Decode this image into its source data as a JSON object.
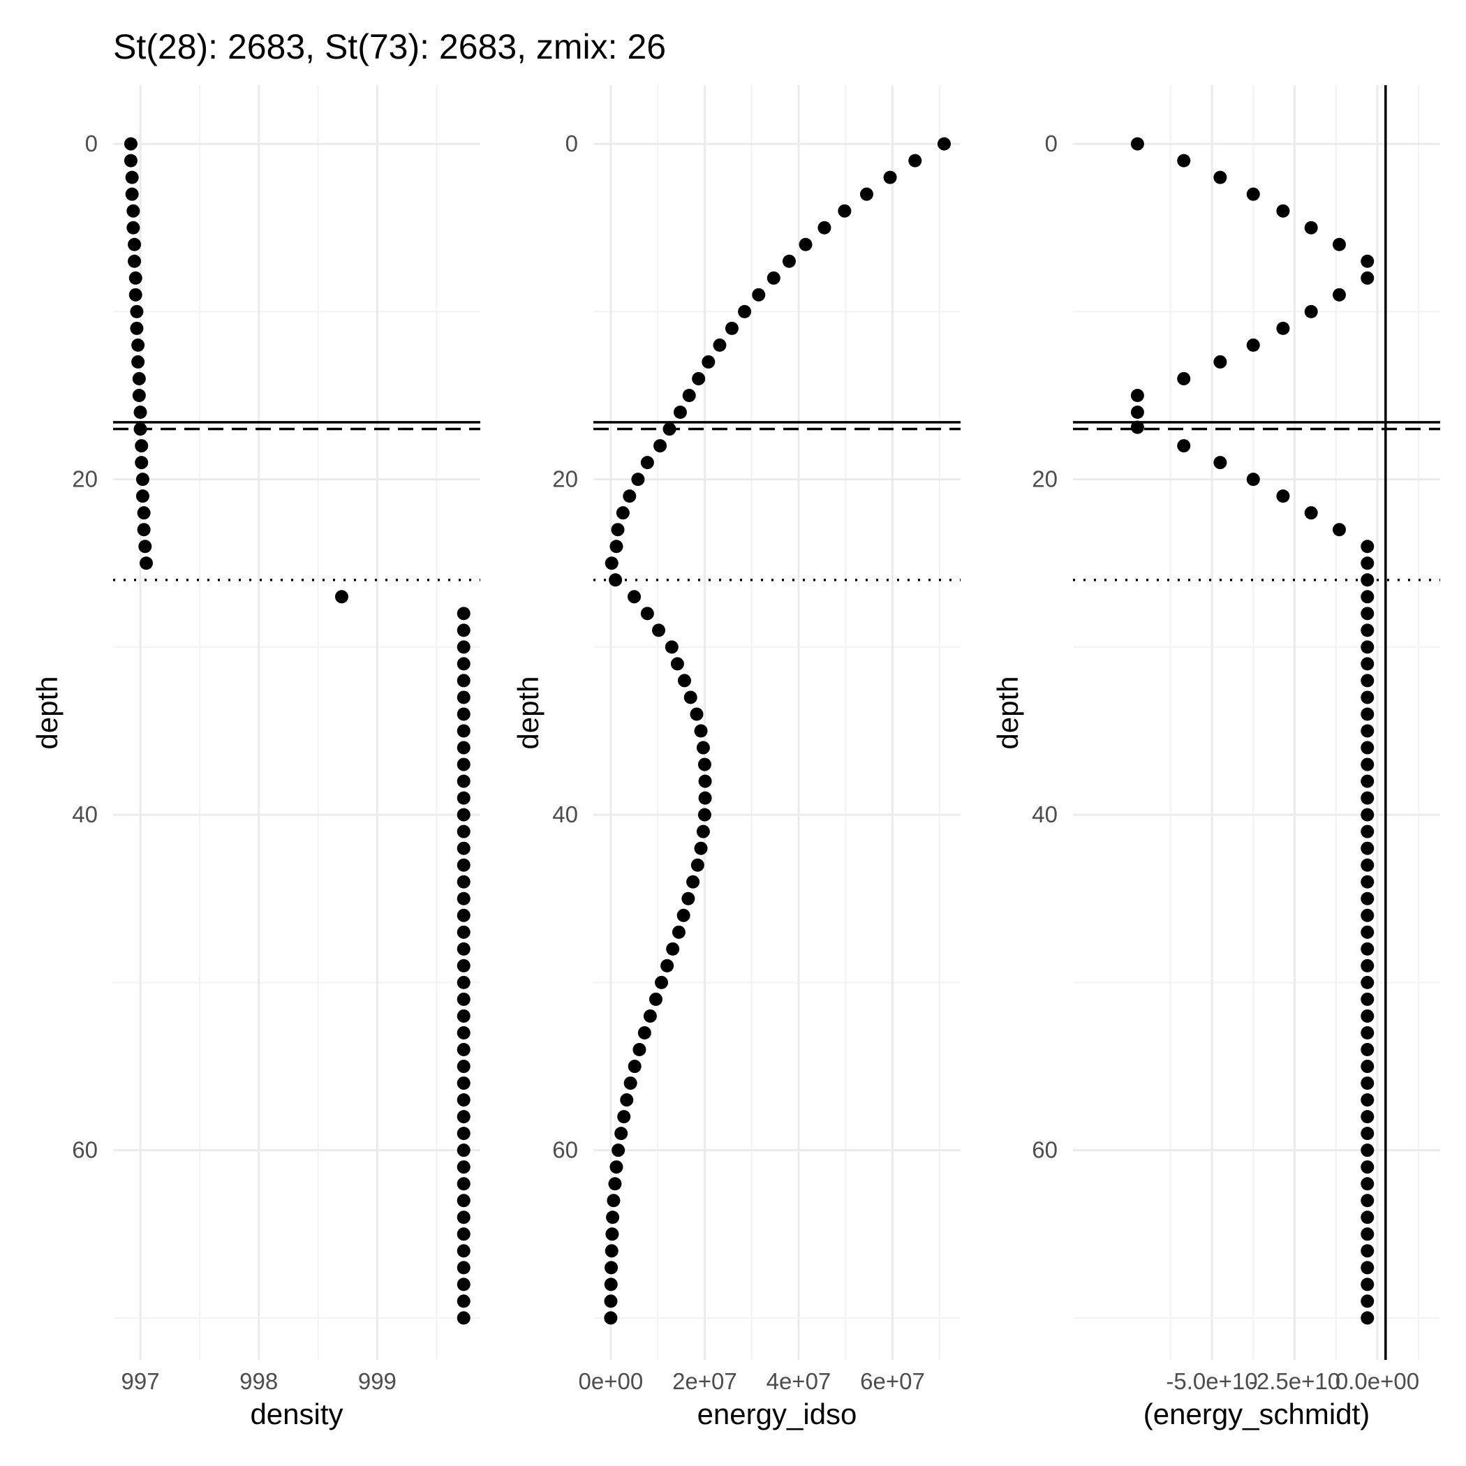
{
  "title": "St(28): 2683, St(73): 2683, zmix: 26",
  "chart_data": {
    "title": "St(28): 2683, St(73): 2683, zmix: 26",
    "ylabel": "depth",
    "y_reversed": true,
    "ylim": [
      -3.5,
      72.5
    ],
    "y_ticks": [
      0,
      20,
      40,
      60
    ],
    "y_tick_labels": [
      "0",
      "20",
      "40",
      "60"
    ],
    "hlines": [
      {
        "y": 16.6,
        "style": "solid"
      },
      {
        "y": 17.0,
        "style": "dashed"
      },
      {
        "y": 26.0,
        "style": "dotted"
      }
    ],
    "panels": [
      {
        "type": "scatter",
        "xlabel": "density",
        "xlim": [
          996.77,
          999.87
        ],
        "x_ticks": [
          997,
          998,
          999
        ],
        "x_tick_labels": [
          "997",
          "998",
          "999"
        ],
        "vlines": [],
        "points": [
          [
            996.92,
            0
          ],
          [
            996.92,
            1
          ],
          [
            996.93,
            2
          ],
          [
            996.93,
            3
          ],
          [
            996.94,
            4
          ],
          [
            996.94,
            5
          ],
          [
            996.95,
            6
          ],
          [
            996.95,
            7
          ],
          [
            996.96,
            8
          ],
          [
            996.96,
            9
          ],
          [
            996.97,
            10
          ],
          [
            996.97,
            11
          ],
          [
            996.98,
            12
          ],
          [
            996.98,
            13
          ],
          [
            996.99,
            14
          ],
          [
            996.99,
            15
          ],
          [
            997.0,
            16
          ],
          [
            997.0,
            17
          ],
          [
            997.01,
            18
          ],
          [
            997.01,
            19
          ],
          [
            997.02,
            20
          ],
          [
            997.02,
            21
          ],
          [
            997.03,
            22
          ],
          [
            997.03,
            23
          ],
          [
            997.04,
            24
          ],
          [
            997.05,
            25
          ],
          [
            998.7,
            27
          ],
          [
            999.73,
            28
          ],
          [
            999.73,
            29
          ],
          [
            999.73,
            30
          ],
          [
            999.73,
            31
          ],
          [
            999.73,
            32
          ],
          [
            999.73,
            33
          ],
          [
            999.73,
            34
          ],
          [
            999.73,
            35
          ],
          [
            999.73,
            36
          ],
          [
            999.73,
            37
          ],
          [
            999.73,
            38
          ],
          [
            999.73,
            39
          ],
          [
            999.73,
            40
          ],
          [
            999.73,
            41
          ],
          [
            999.73,
            42
          ],
          [
            999.73,
            43
          ],
          [
            999.73,
            44
          ],
          [
            999.73,
            45
          ],
          [
            999.73,
            46
          ],
          [
            999.73,
            47
          ],
          [
            999.73,
            48
          ],
          [
            999.73,
            49
          ],
          [
            999.73,
            50
          ],
          [
            999.73,
            51
          ],
          [
            999.73,
            52
          ],
          [
            999.73,
            53
          ],
          [
            999.73,
            54
          ],
          [
            999.73,
            55
          ],
          [
            999.73,
            56
          ],
          [
            999.73,
            57
          ],
          [
            999.73,
            58
          ],
          [
            999.73,
            59
          ],
          [
            999.73,
            60
          ],
          [
            999.73,
            61
          ],
          [
            999.73,
            62
          ],
          [
            999.73,
            63
          ],
          [
            999.73,
            64
          ],
          [
            999.73,
            65
          ],
          [
            999.73,
            66
          ],
          [
            999.73,
            67
          ],
          [
            999.73,
            68
          ],
          [
            999.73,
            69
          ],
          [
            999.73,
            70
          ]
        ]
      },
      {
        "type": "scatter",
        "xlabel": "energy_idso",
        "xlim": [
          -3700000.0,
          74500000.0
        ],
        "x_ticks": [
          0,
          20000000.0,
          40000000.0,
          60000000.0
        ],
        "x_tick_labels": [
          "0e+00",
          "2e+07",
          "4e+07",
          "6e+07"
        ],
        "vlines": [],
        "points": [
          [
            71000000.0,
            0
          ],
          [
            64800000.0,
            1
          ],
          [
            59500000.0,
            2
          ],
          [
            54500000.0,
            3
          ],
          [
            49800000.0,
            4
          ],
          [
            45500000.0,
            5
          ],
          [
            41500000.0,
            6
          ],
          [
            38000000.0,
            7
          ],
          [
            34700000.0,
            8
          ],
          [
            31500000.0,
            9
          ],
          [
            28500000.0,
            10
          ],
          [
            25800000.0,
            11
          ],
          [
            23200000.0,
            12
          ],
          [
            20800000.0,
            13
          ],
          [
            18700000.0,
            14
          ],
          [
            16700000.0,
            15
          ],
          [
            14800000.0,
            16
          ],
          [
            12500000.0,
            17
          ],
          [
            10500000.0,
            18
          ],
          [
            7800000.0,
            19
          ],
          [
            5800000.0,
            20
          ],
          [
            4000000.0,
            21
          ],
          [
            2600000.0,
            22
          ],
          [
            1500000.0,
            23
          ],
          [
            1200000.0,
            24
          ],
          [
            200000.0,
            25
          ],
          [
            1000000.0,
            26
          ],
          [
            5000000.0,
            27
          ],
          [
            7800000.0,
            28
          ],
          [
            10200000.0,
            29
          ],
          [
            13000000.0,
            30
          ],
          [
            14200000.0,
            31
          ],
          [
            15700000.0,
            32
          ],
          [
            17000000.0,
            33
          ],
          [
            18300000.0,
            34
          ],
          [
            19200000.0,
            35
          ],
          [
            19700000.0,
            36
          ],
          [
            20000000.0,
            37
          ],
          [
            20100000.0,
            38
          ],
          [
            20100000.0,
            39
          ],
          [
            20000000.0,
            40
          ],
          [
            19700000.0,
            41
          ],
          [
            19200000.0,
            42
          ],
          [
            18500000.0,
            43
          ],
          [
            17500000.0,
            44
          ],
          [
            16500000.0,
            45
          ],
          [
            15500000.0,
            46
          ],
          [
            14500000.0,
            47
          ],
          [
            13200000.0,
            48
          ],
          [
            12000000.0,
            49
          ],
          [
            10800000.0,
            50
          ],
          [
            9600000.0,
            51
          ],
          [
            8400000.0,
            52
          ],
          [
            7200000.0,
            53
          ],
          [
            6100000.0,
            54
          ],
          [
            5100000.0,
            55
          ],
          [
            4200000.0,
            56
          ],
          [
            3400000.0,
            57
          ],
          [
            2800000.0,
            58
          ],
          [
            2200000.0,
            59
          ],
          [
            1600000.0,
            60
          ],
          [
            1200000.0,
            61
          ],
          [
            900000.0,
            62
          ],
          [
            600000.0,
            63
          ],
          [
            400000.0,
            64
          ],
          [
            300000.0,
            65
          ],
          [
            200000.0,
            66
          ],
          [
            100000.0,
            67
          ],
          [
            50000.0,
            68
          ],
          [
            10000.0,
            69
          ],
          [
            0,
            70
          ]
        ]
      },
      {
        "type": "scatter",
        "xlabel": "(energy_schmidt)",
        "xlim": [
          -92000000000.0,
          19000000000.0
        ],
        "x_ticks": [
          -50000000000.0,
          -25000000000.0,
          0
        ],
        "x_tick_labels": [
          "-5.0e+10",
          "-2.5e+10",
          "0.0e+00"
        ],
        "vlines": [
          {
            "x": 2500000000.0,
            "style": "solid"
          }
        ],
        "points": [
          [
            -72500000000.0,
            0
          ],
          [
            -58500000000.0,
            1
          ],
          [
            -47500000000.0,
            2
          ],
          [
            -37500000000.0,
            3
          ],
          [
            -28500000000.0,
            4
          ],
          [
            -20000000000.0,
            5
          ],
          [
            -11500000000.0,
            6
          ],
          [
            -3000000000.0,
            7
          ],
          [
            -3000000000.0,
            8
          ],
          [
            -11500000000.0,
            9
          ],
          [
            -20000000000.0,
            10
          ],
          [
            -28500000000.0,
            11
          ],
          [
            -37500000000.0,
            12
          ],
          [
            -47500000000.0,
            13
          ],
          [
            -58500000000.0,
            14
          ],
          [
            -72500000000.0,
            15
          ],
          [
            -72500000000.0,
            16
          ],
          [
            -72500000000.0,
            16.9
          ],
          [
            -58500000000.0,
            18
          ],
          [
            -47500000000.0,
            19
          ],
          [
            -37500000000.0,
            20
          ],
          [
            -28500000000.0,
            21
          ],
          [
            -20000000000.0,
            22
          ],
          [
            -11500000000.0,
            23
          ],
          [
            -3000000000.0,
            24
          ],
          [
            -3000000000.0,
            25
          ],
          [
            -3000000000.0,
            26
          ],
          [
            -3000000000.0,
            27
          ],
          [
            -3000000000.0,
            28
          ],
          [
            -3000000000.0,
            29
          ],
          [
            -3000000000.0,
            30
          ],
          [
            -3000000000.0,
            31
          ],
          [
            -3000000000.0,
            32
          ],
          [
            -3000000000.0,
            33
          ],
          [
            -3000000000.0,
            34
          ],
          [
            -3000000000.0,
            35
          ],
          [
            -3000000000.0,
            36
          ],
          [
            -3000000000.0,
            37
          ],
          [
            -3000000000.0,
            38
          ],
          [
            -3000000000.0,
            39
          ],
          [
            -3000000000.0,
            40
          ],
          [
            -3000000000.0,
            41
          ],
          [
            -3000000000.0,
            42
          ],
          [
            -3000000000.0,
            43
          ],
          [
            -3000000000.0,
            44
          ],
          [
            -3000000000.0,
            45
          ],
          [
            -3000000000.0,
            46
          ],
          [
            -3000000000.0,
            47
          ],
          [
            -3000000000.0,
            48
          ],
          [
            -3000000000.0,
            49
          ],
          [
            -3000000000.0,
            50
          ],
          [
            -3000000000.0,
            51
          ],
          [
            -3000000000.0,
            52
          ],
          [
            -3000000000.0,
            53
          ],
          [
            -3000000000.0,
            54
          ],
          [
            -3000000000.0,
            55
          ],
          [
            -3000000000.0,
            56
          ],
          [
            -3000000000.0,
            57
          ],
          [
            -3000000000.0,
            58
          ],
          [
            -3000000000.0,
            59
          ],
          [
            -3000000000.0,
            60
          ],
          [
            -3000000000.0,
            61
          ],
          [
            -3000000000.0,
            62
          ],
          [
            -3000000000.0,
            63
          ],
          [
            -3000000000.0,
            64
          ],
          [
            -3000000000.0,
            65
          ],
          [
            -3000000000.0,
            66
          ],
          [
            -3000000000.0,
            67
          ],
          [
            -3000000000.0,
            68
          ],
          [
            -3000000000.0,
            69
          ],
          [
            -3000000000.0,
            70
          ]
        ]
      }
    ]
  }
}
